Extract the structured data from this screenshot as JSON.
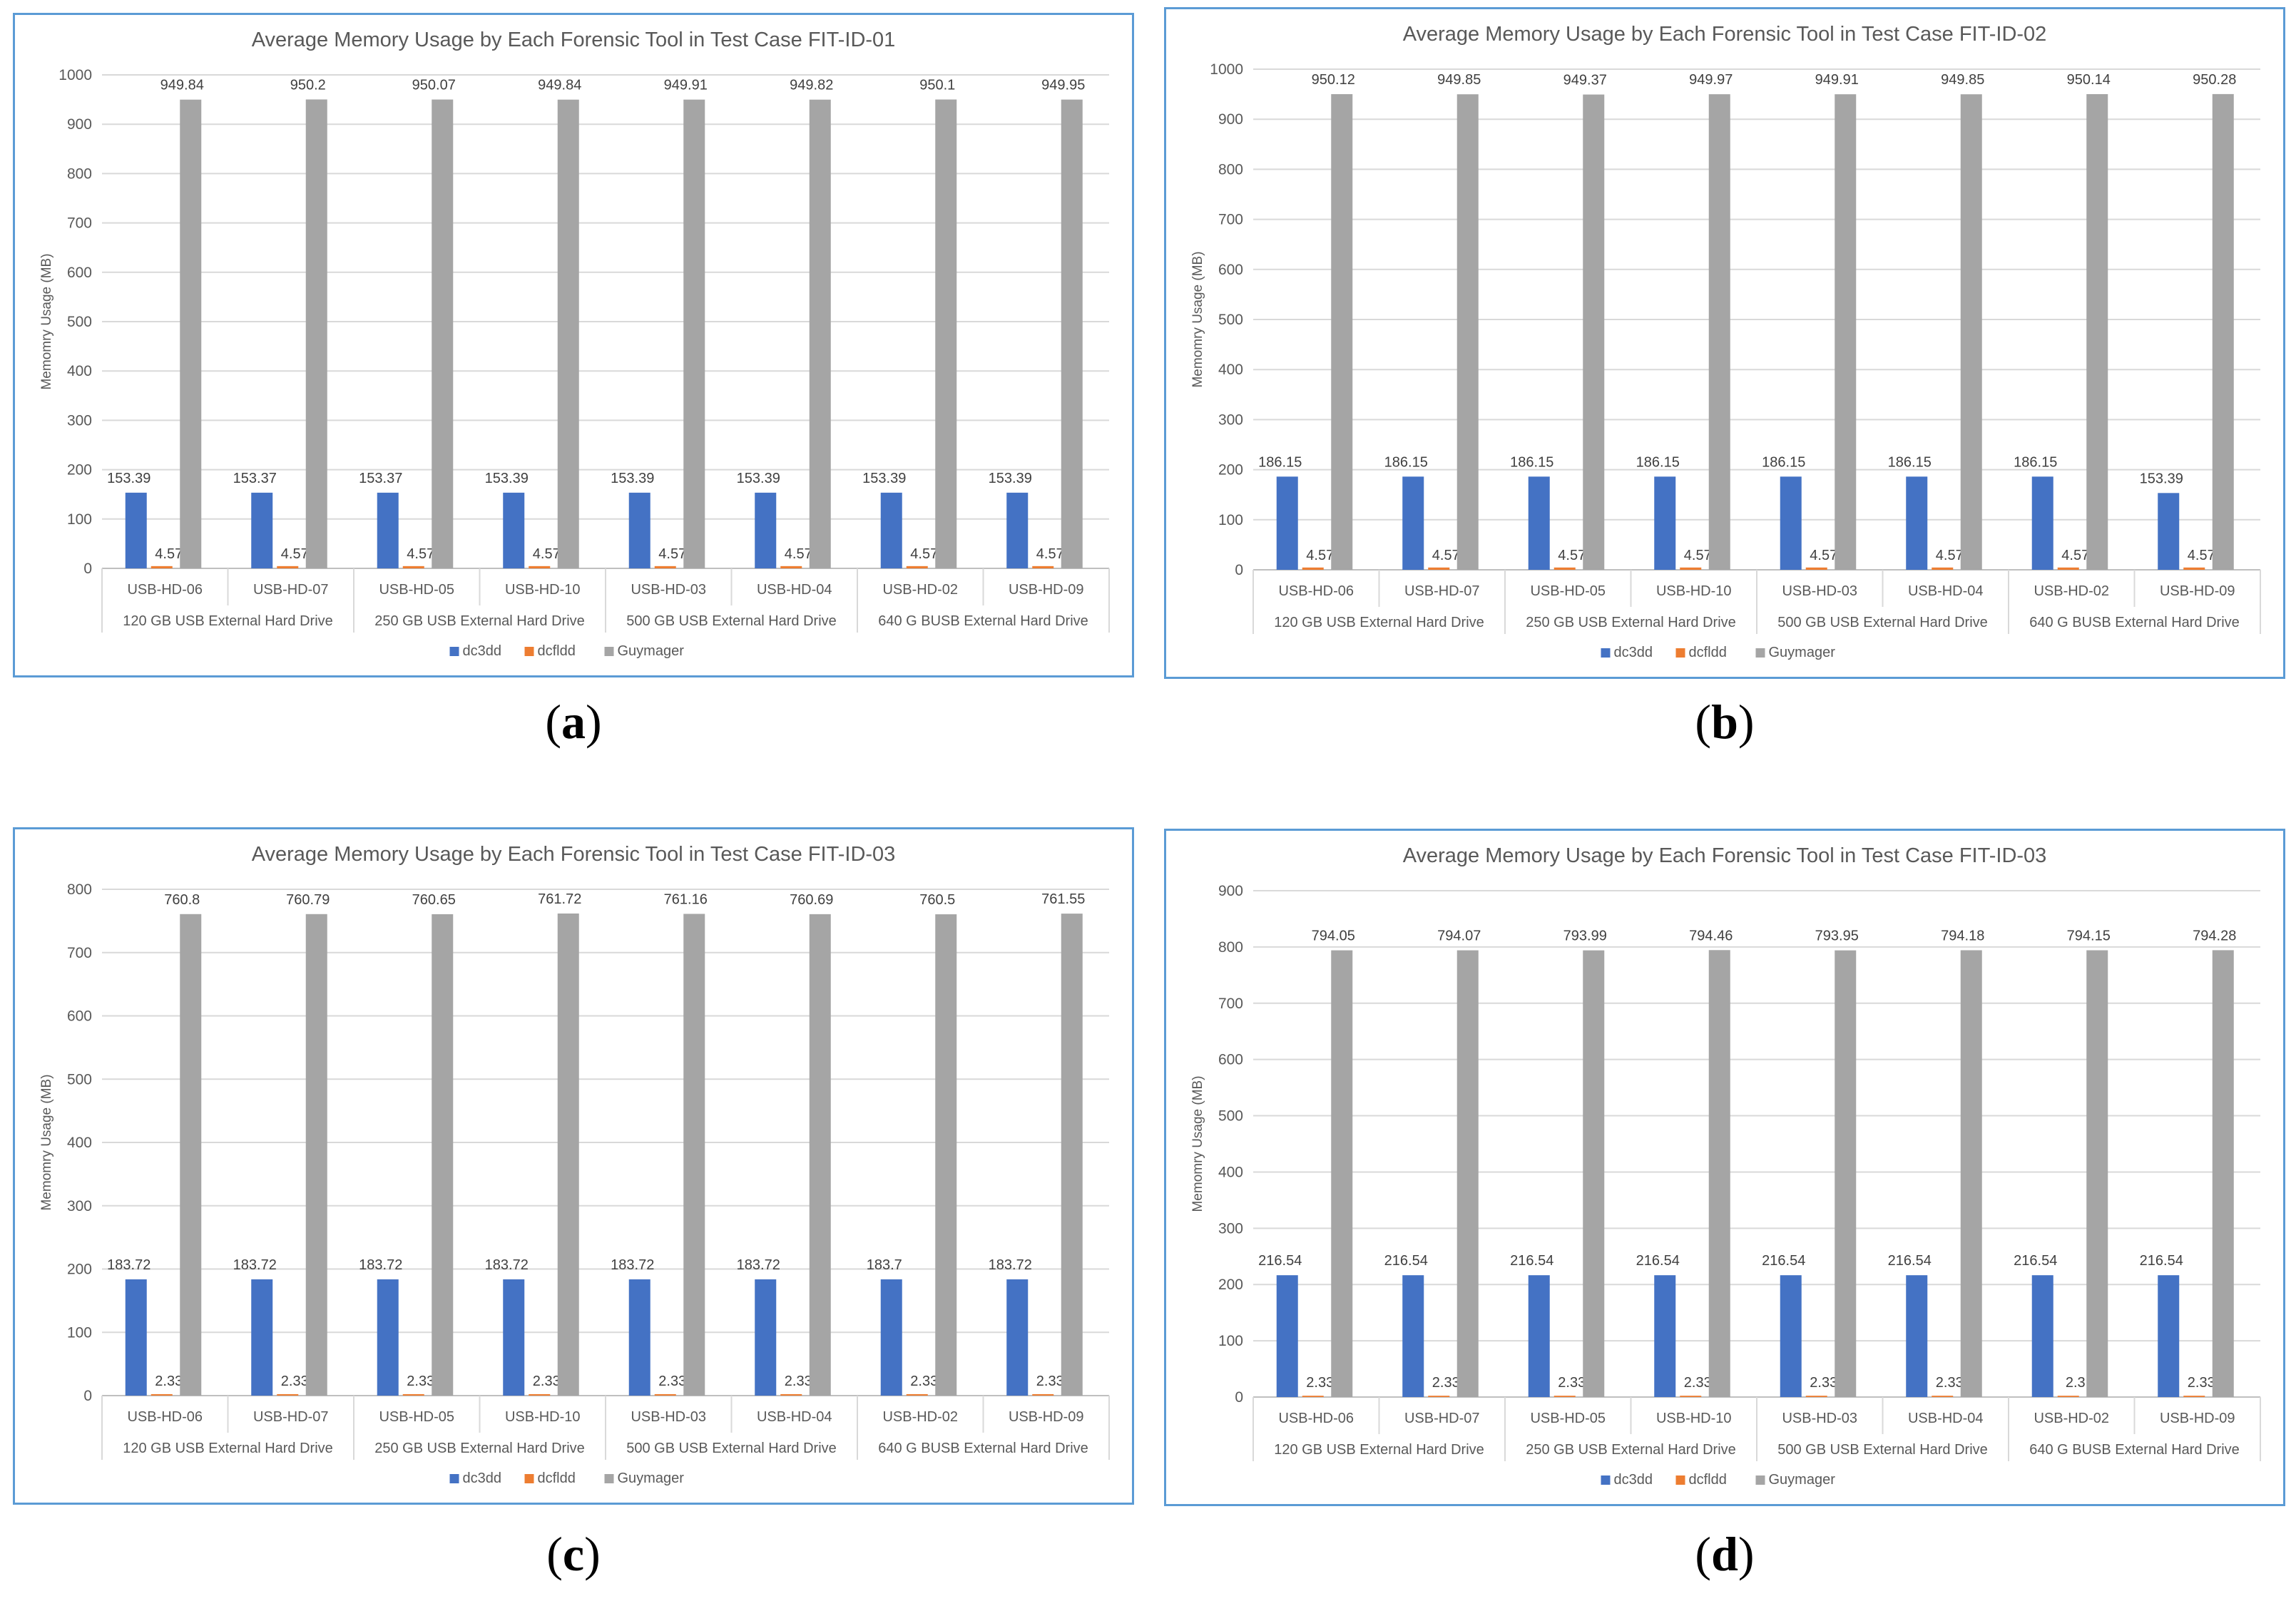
{
  "captions": [
    "a",
    "b",
    "c",
    "d"
  ],
  "colors": {
    "dc3dd": "#4472c4",
    "dcfldd": "#ed7d31",
    "Guymager": "#a5a5a5",
    "border": "#5b9bd5",
    "grid": "#d9d9d9",
    "text": "#595959"
  },
  "chart_data": [
    {
      "type": "bar",
      "title": "Average Memory Usage by Each Forensic Tool in Test Case FIT-ID-01",
      "ylabel": "Memomry Usage (MB)",
      "ylim": [
        0,
        1000
      ],
      "yticks": [
        0,
        100,
        200,
        300,
        400,
        500,
        600,
        700,
        800,
        900,
        1000
      ],
      "categories": [
        "USB-HD-06",
        "USB-HD-07",
        "USB-HD-05",
        "USB-HD-10",
        "USB-HD-03",
        "USB-HD-04",
        "USB-HD-02",
        "USB-HD-09"
      ],
      "groups": [
        "120 GB USB External Hard Drive",
        "250 GB USB External Hard Drive",
        "500 GB USB External Hard Drive",
        "640 G BUSB External Hard Drive"
      ],
      "series": [
        {
          "name": "dc3dd",
          "values": [
            153.39,
            153.37,
            153.37,
            153.39,
            153.39,
            153.39,
            153.39,
            153.39
          ]
        },
        {
          "name": "dcfldd",
          "values": [
            4.57,
            4.57,
            4.57,
            4.57,
            4.57,
            4.57,
            4.57,
            4.57
          ]
        },
        {
          "name": "Guymager",
          "values": [
            949.84,
            950.2,
            950.07,
            949.84,
            949.91,
            949.82,
            950.1,
            949.95
          ]
        }
      ],
      "legend": "bottom"
    },
    {
      "type": "bar",
      "title": "Average Memory Usage by Each Forensic Tool in Test Case FIT-ID-02",
      "ylabel": "Memomry Usage (MB)",
      "ylim": [
        0,
        1000
      ],
      "yticks": [
        0,
        100,
        200,
        300,
        400,
        500,
        600,
        700,
        800,
        900,
        1000
      ],
      "categories": [
        "USB-HD-06",
        "USB-HD-07",
        "USB-HD-05",
        "USB-HD-10",
        "USB-HD-03",
        "USB-HD-04",
        "USB-HD-02",
        "USB-HD-09"
      ],
      "groups": [
        "120 GB USB External Hard Drive",
        "250 GB USB External Hard Drive",
        "500 GB USB External Hard Drive",
        "640 G BUSB External Hard Drive"
      ],
      "series": [
        {
          "name": "dc3dd",
          "values": [
            186.15,
            186.15,
            186.15,
            186.15,
            186.15,
            186.15,
            186.15,
            153.39
          ]
        },
        {
          "name": "dcfldd",
          "values": [
            4.57,
            4.57,
            4.57,
            4.57,
            4.57,
            4.57,
            4.57,
            4.57
          ]
        },
        {
          "name": "Guymager",
          "values": [
            950.12,
            949.85,
            949.37,
            949.97,
            949.91,
            949.85,
            950.14,
            950.28
          ]
        }
      ],
      "legend": "bottom"
    },
    {
      "type": "bar",
      "title": "Average Memory Usage by Each Forensic Tool in Test Case FIT-ID-03",
      "ylabel": "Memomry Usage (MB)",
      "ylim": [
        0,
        800
      ],
      "yticks": [
        0,
        100,
        200,
        300,
        400,
        500,
        600,
        700,
        800
      ],
      "categories": [
        "USB-HD-06",
        "USB-HD-07",
        "USB-HD-05",
        "USB-HD-10",
        "USB-HD-03",
        "USB-HD-04",
        "USB-HD-02",
        "USB-HD-09"
      ],
      "groups": [
        "120 GB USB External Hard Drive",
        "250 GB USB External Hard Drive",
        "500 GB USB External Hard Drive",
        "640 G BUSB External Hard Drive"
      ],
      "series": [
        {
          "name": "dc3dd",
          "values": [
            183.72,
            183.72,
            183.72,
            183.72,
            183.72,
            183.72,
            183.7,
            183.72
          ]
        },
        {
          "name": "dcfldd",
          "values": [
            2.33,
            2.33,
            2.33,
            2.33,
            2.33,
            2.33,
            2.33,
            2.33
          ]
        },
        {
          "name": "Guymager",
          "values": [
            760.8,
            760.79,
            760.65,
            761.72,
            761.16,
            760.69,
            760.5,
            761.55
          ]
        }
      ],
      "legend": "bottom"
    },
    {
      "type": "bar",
      "title": "Average Memory Usage by Each Forensic Tool in Test Case FIT-ID-03",
      "ylabel": "Memomry Usage (MB)",
      "ylim": [
        0,
        900
      ],
      "yticks": [
        0,
        100,
        200,
        300,
        400,
        500,
        600,
        700,
        800,
        900
      ],
      "categories": [
        "USB-HD-06",
        "USB-HD-07",
        "USB-HD-05",
        "USB-HD-10",
        "USB-HD-03",
        "USB-HD-04",
        "USB-HD-02",
        "USB-HD-09"
      ],
      "groups": [
        "120 GB USB External Hard Drive",
        "250 GB USB External Hard Drive",
        "500 GB USB External Hard Drive",
        "640 G BUSB External Hard Drive"
      ],
      "series": [
        {
          "name": "dc3dd",
          "values": [
            216.54,
            216.54,
            216.54,
            216.54,
            216.54,
            216.54,
            216.54,
            216.54
          ]
        },
        {
          "name": "dcfldd",
          "values": [
            2.33,
            2.33,
            2.33,
            2.33,
            2.33,
            2.33,
            2.3,
            2.33
          ]
        },
        {
          "name": "Guymager",
          "values": [
            794.05,
            794.07,
            793.99,
            794.46,
            793.95,
            794.18,
            794.15,
            794.28
          ]
        }
      ],
      "legend": "bottom"
    }
  ]
}
